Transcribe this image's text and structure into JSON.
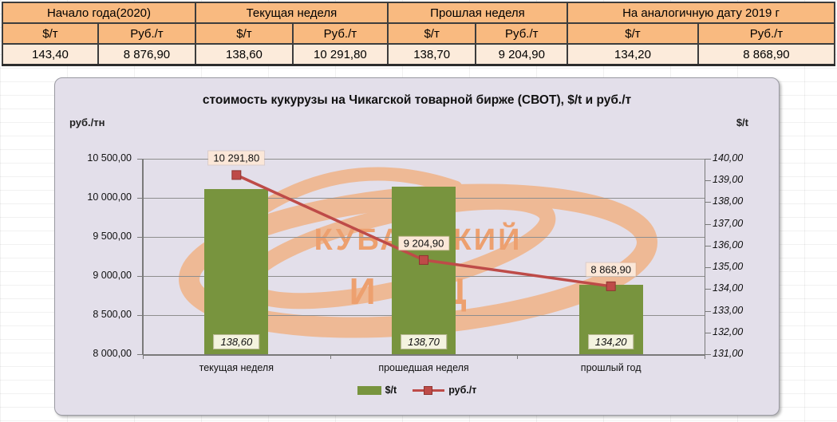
{
  "table": {
    "units": {
      "usd": "$/т",
      "rub": "Руб./т"
    },
    "groups": [
      {
        "label": "Начало года(2020)",
        "usd": "143,40",
        "rub": "8 876,90"
      },
      {
        "label": "Текущая неделя",
        "usd": "138,60",
        "rub": "10 291,80"
      },
      {
        "label": "Прошлая неделя",
        "usd": "138,70",
        "rub": "9 204,90"
      },
      {
        "label": "На аналогичную дату 2019 г",
        "usd": "134,20",
        "rub": "8 868,90"
      }
    ]
  },
  "chart_data": {
    "type": "bar",
    "title": "стоимость кукурузы на Чикагской товарной бирже (СВОТ), $/t и руб./т",
    "categories": [
      "текущая неделя",
      "прошедшая неделя",
      "прошлый год"
    ],
    "series": [
      {
        "name": "$/t",
        "type": "bar",
        "axis": "right",
        "color": "#78943e",
        "values": [
          138.6,
          138.7,
          134.2
        ],
        "labels": [
          "138,60",
          "138,70",
          "134,20"
        ]
      },
      {
        "name": "руб./т",
        "type": "line",
        "axis": "left",
        "color": "#be4b48",
        "marker_edge": "#8f3531",
        "values": [
          10291.8,
          9204.9,
          8868.9
        ],
        "labels": [
          "10 291,80",
          "9 204,90",
          "8 868,90"
        ]
      }
    ],
    "left_axis": {
      "title": "руб./тн",
      "min": 8000,
      "max": 10500,
      "step": 500,
      "tick_labels": [
        "10 500,00",
        "10 000,00",
        "9 500,00",
        "9 000,00",
        "8 500,00",
        "8 000,00"
      ]
    },
    "right_axis": {
      "title": "$/t",
      "min": 131,
      "max": 140,
      "step": 1,
      "tick_labels": [
        "140,00",
        "139,00",
        "138,00",
        "137,00",
        "136,00",
        "135,00",
        "134,00",
        "133,00",
        "132,00",
        "131,00"
      ]
    },
    "legend_position": "bottom",
    "grid": true,
    "watermark": {
      "line1": "КУБАНСКИЙ",
      "line2": "ИКЦ",
      "color": "#f1b081",
      "text_color": "#eda06f"
    },
    "colors": {
      "chart_bg": "#e3dfea",
      "gridline": "#8e8e8e",
      "bar_label_bg": "#f4f3df",
      "line_label_bg": "#fbe7d8"
    }
  }
}
